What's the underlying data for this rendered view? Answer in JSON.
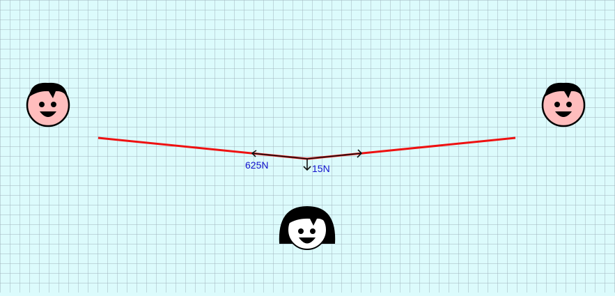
{
  "colors": {
    "background": "#dcfbfc",
    "grid": "#9fb3bd",
    "rope": "#ee1111",
    "force_arrow": "#111111",
    "force_label": "#1010cc",
    "face_skin": "#ffbdbd",
    "hair": "#000000"
  },
  "forces": {
    "tension_label": "625N",
    "weight_label": "15N"
  },
  "figures": {
    "left_person": "boy-face-icon",
    "right_person": "boy-face-icon",
    "center_person": "girl-face-icon"
  }
}
